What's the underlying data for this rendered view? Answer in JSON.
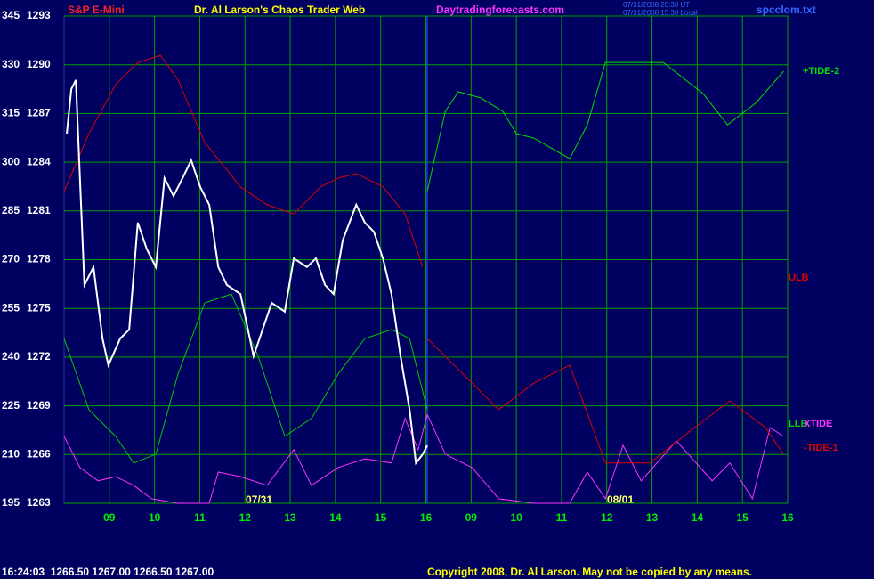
{
  "chart_data": {
    "type": "line",
    "instrument": "S&P E-Mini",
    "title": "Dr. Al Larson's Chaos Trader Web",
    "website": "Daytradingforecasts.com",
    "timestamps": [
      "07/31/2008 20:30 UT",
      "07/31/2008 15:30 Local"
    ],
    "file": "spcclom.txt",
    "date_labels": [
      "07/31",
      "08/01"
    ],
    "status_line": "16:24:03  1266.50 1267.00 1266.50 1267.00",
    "copyright": "Copyright 2008, Dr. Al Larson. May not be copied by any means.",
    "grid": true,
    "xlim": [
      0,
      16
    ],
    "xticks": [
      {
        "value": 1,
        "label": "09"
      },
      {
        "value": 2,
        "label": "10"
      },
      {
        "value": 3,
        "label": "11"
      },
      {
        "value": 4,
        "label": "12"
      },
      {
        "value": 5,
        "label": "13"
      },
      {
        "value": 6,
        "label": "14"
      },
      {
        "value": 7,
        "label": "15"
      },
      {
        "value": 8,
        "label": "16"
      },
      {
        "value": 9,
        "label": "09"
      },
      {
        "value": 10,
        "label": "10"
      },
      {
        "value": 11,
        "label": "11"
      },
      {
        "value": 12,
        "label": "12"
      },
      {
        "value": 13,
        "label": "13"
      },
      {
        "value": 14,
        "label": "14"
      },
      {
        "value": 15,
        "label": "15"
      },
      {
        "value": 16,
        "label": "16"
      }
    ],
    "ylim": [
      195,
      345
    ],
    "yticks": [
      195,
      210,
      225,
      240,
      255,
      270,
      285,
      300,
      315,
      330,
      345
    ],
    "y2lim": [
      1263,
      1293
    ],
    "y2ticks": [
      1263,
      1266,
      1269,
      1272,
      1275,
      1278,
      1281,
      1284,
      1287,
      1290,
      1293
    ],
    "series": [
      {
        "name": "+TIDE-2",
        "color": "#00dd00",
        "x": [
          8.03,
          8.23,
          8.43,
          8.72,
          9.21,
          9.7,
          10.0,
          10.39,
          11.18,
          11.57,
          11.97,
          13.25,
          14.13,
          14.67,
          15.31,
          15.91
        ],
        "values": [
          291.0,
          303.4,
          315.7,
          321.7,
          319.8,
          315.7,
          308.8,
          307.4,
          301.1,
          311.5,
          330.7,
          330.7,
          321.1,
          311.5,
          318.4,
          328.0
        ]
      },
      {
        "name": "ULB",
        "color": "#dd0000",
        "x": [
          0,
          0.55,
          1.14,
          1.63,
          2.13,
          2.52,
          3.11,
          3.9,
          4.49,
          5.08,
          5.67,
          6.06,
          6.46,
          7.05,
          7.54,
          7.93
        ],
        "values": [
          291.0,
          308.8,
          323.9,
          330.7,
          332.9,
          325.3,
          306.1,
          292.4,
          286.9,
          284.1,
          292.4,
          295.1,
          296.5,
          292.4,
          284.1,
          267.7
        ]
      },
      {
        "name": "LLB",
        "color": "#00cc00",
        "x": [
          0,
          0.55,
          1.14,
          1.54,
          2.03,
          2.52,
          3.11,
          3.7,
          4.29,
          4.88,
          5.47,
          6.06,
          6.65,
          7.24,
          7.64,
          8.03
        ],
        "values": [
          245.7,
          223.8,
          215.6,
          207.4,
          210.1,
          234.8,
          256.7,
          259.4,
          240.3,
          215.6,
          221.1,
          234.8,
          245.7,
          248.5,
          245.7,
          223.8
        ]
      },
      {
        "name": "XTIDE",
        "color": "#ff33ff",
        "x": [
          0,
          0.35,
          0.75,
          1.14,
          1.54,
          1.93,
          2.52,
          3.21,
          3.41,
          3.9,
          4.49,
          5.08,
          5.47,
          6.06,
          6.65,
          7.24,
          7.54,
          7.83,
          8.03,
          8.43,
          9.02,
          9.61,
          10.39,
          11.18,
          11.57,
          11.97,
          12.36,
          12.76,
          13.54,
          14.33,
          14.72,
          15.22,
          15.61,
          15.91
        ],
        "values": [
          215.6,
          206.0,
          201.9,
          203.2,
          200.5,
          196.4,
          195,
          195,
          204.6,
          203.2,
          200.5,
          211.5,
          200.5,
          206.0,
          208.7,
          207.4,
          221.1,
          211.5,
          222.4,
          210.1,
          206.0,
          196.4,
          195,
          195,
          204.6,
          196.4,
          212.8,
          201.9,
          214.2,
          201.9,
          207.4,
          196.4,
          218.3,
          215.6
        ]
      },
      {
        "name": "-TIDE-1",
        "color": "#dd0000",
        "x": [
          8.03,
          8.82,
          9.61,
          10.39,
          11.18,
          11.97,
          12.95,
          13.94,
          14.72,
          15.51,
          15.91
        ],
        "values": [
          245.7,
          234.8,
          223.8,
          232.0,
          237.5,
          207.4,
          207.4,
          218.3,
          226.5,
          218.3,
          210.1
        ]
      },
      {
        "color": "#ffffff",
        "x": [
          0.06,
          0.16,
          0.26,
          0.35,
          0.45,
          0.65,
          0.85,
          0.98,
          1.24,
          1.44,
          1.63,
          1.83,
          2.03,
          2.22,
          2.42,
          2.62,
          2.81,
          3.01,
          3.21,
          3.41,
          3.6,
          3.9,
          4.19,
          4.39,
          4.59,
          4.88,
          5.08,
          5.37,
          5.57,
          5.77,
          5.96,
          6.16,
          6.46,
          6.65,
          6.85,
          7.05,
          7.24,
          7.44,
          7.64,
          7.78,
          7.93,
          8.03
        ],
        "values": [
          308.8,
          322.5,
          325.3,
          295.1,
          262.2,
          267.7,
          245.7,
          237.5,
          245.7,
          248.5,
          281.4,
          273.2,
          267.7,
          295.1,
          289.6,
          295.1,
          300.6,
          292.4,
          286.9,
          267.7,
          262.2,
          259.4,
          240.3,
          248.5,
          256.7,
          254.0,
          270.4,
          267.7,
          270.4,
          262.2,
          259.4,
          275.9,
          286.9,
          281.4,
          278.6,
          270.4,
          259.4,
          240.3,
          223.8,
          207.4,
          210.1,
          212.8
        ]
      }
    ]
  }
}
